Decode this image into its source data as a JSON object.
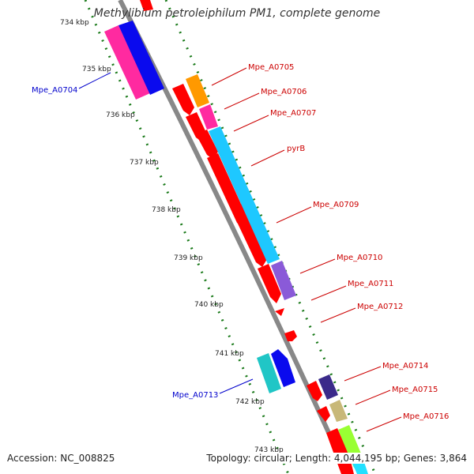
{
  "title": "Methylibium petroleiphilum PM1, complete genome",
  "footer": {
    "accession": "Accession: NC_008825",
    "topology": "Topology: circular; Length: 4,044,195 bp; Genes: 3,864"
  },
  "ruler_labels": [
    "734 kbp",
    "735 kbp",
    "736 kbp",
    "737 kbp",
    "738 kbp",
    "739 kbp",
    "740 kbp",
    "741 kbp",
    "742 kbp",
    "743 kbp"
  ],
  "gene_labels": {
    "Mpe_A0704": "Mpe_A0704",
    "Mpe_A0705": "Mpe_A0705",
    "Mpe_A0706": "Mpe_A0706",
    "Mpe_A0707": "Mpe_A0707",
    "pyrB": "pyrB",
    "Mpe_A0709": "Mpe_A0709",
    "Mpe_A0710": "Mpe_A0710",
    "Mpe_A0711": "Mpe_A0711",
    "Mpe_A0712": "Mpe_A0712",
    "Mpe_A0713": "Mpe_A0713",
    "Mpe_A0714": "Mpe_A0714",
    "Mpe_A0715": "Mpe_A0715",
    "Mpe_A0716": "Mpe_A0716"
  },
  "colors": {
    "reverse_label": "#0000cc",
    "forward_label": "#cc0000",
    "backbone": "#888888",
    "ticks": "#1a7a1a"
  }
}
